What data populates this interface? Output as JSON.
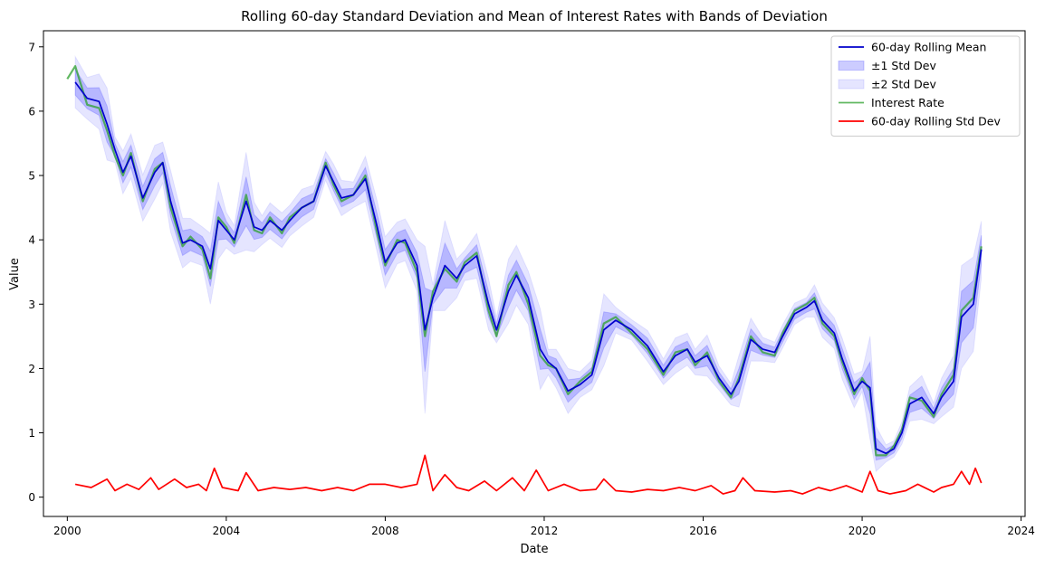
{
  "chart_data": {
    "type": "line",
    "title": "Rolling 60-day Standard Deviation and Mean of Interest Rates with Bands of Deviation",
    "xlabel": "Date",
    "ylabel": "Value",
    "xlim": [
      1999.4,
      2024.1
    ],
    "ylim": [
      -0.3,
      7.25
    ],
    "xticks": [
      2000,
      2004,
      2008,
      2012,
      2016,
      2020,
      2024
    ],
    "yticks": [
      0,
      1,
      2,
      3,
      4,
      5,
      6,
      7
    ],
    "legend_position": "top-right",
    "series": [
      {
        "name": "60-day Rolling Mean",
        "kind": "line",
        "color": "#0000cc"
      },
      {
        "name": "±1 Std Dev",
        "kind": "band",
        "color": "#0000ff",
        "opacity": 0.2
      },
      {
        "name": "±2 Std Dev",
        "kind": "band",
        "color": "#0000ff",
        "opacity": 0.1
      },
      {
        "name": "Interest Rate",
        "kind": "line",
        "color": "#2ca02c"
      },
      {
        "name": "60-day Rolling Std Dev",
        "kind": "line",
        "color": "#ff0000"
      }
    ],
    "mean": {
      "x": [
        2000.2,
        2000.5,
        2000.8,
        2001.0,
        2001.2,
        2001.4,
        2001.6,
        2001.9,
        2002.2,
        2002.4,
        2002.6,
        2002.9,
        2003.1,
        2003.4,
        2003.6,
        2003.8,
        2004.0,
        2004.2,
        2004.5,
        2004.7,
        2004.9,
        2005.1,
        2005.4,
        2005.6,
        2005.9,
        2006.2,
        2006.5,
        2006.7,
        2006.9,
        2007.2,
        2007.5,
        2007.8,
        2008.0,
        2008.3,
        2008.5,
        2008.8,
        2009.0,
        2009.2,
        2009.5,
        2009.8,
        2010.0,
        2010.3,
        2010.6,
        2010.8,
        2011.1,
        2011.3,
        2011.6,
        2011.9,
        2012.1,
        2012.3,
        2012.6,
        2012.9,
        2013.2,
        2013.5,
        2013.8,
        2014.2,
        2014.6,
        2015.0,
        2015.3,
        2015.6,
        2015.8,
        2016.1,
        2016.4,
        2016.7,
        2016.9,
        2017.2,
        2017.5,
        2017.8,
        2018.0,
        2018.3,
        2018.6,
        2018.8,
        2019.0,
        2019.3,
        2019.5,
        2019.8,
        2020.0,
        2020.2,
        2020.35,
        2020.6,
        2020.8,
        2021.0,
        2021.2,
        2021.5,
        2021.8,
        2022.0,
        2022.3,
        2022.5,
        2022.8,
        2023.0
      ],
      "y": [
        6.45,
        6.2,
        6.15,
        5.8,
        5.4,
        5.05,
        5.3,
        4.65,
        5.05,
        5.2,
        4.6,
        3.95,
        4.0,
        3.9,
        3.55,
        4.3,
        4.15,
        4.0,
        4.6,
        4.2,
        4.15,
        4.3,
        4.15,
        4.3,
        4.5,
        4.6,
        5.15,
        4.9,
        4.65,
        4.7,
        4.95,
        4.2,
        3.65,
        3.95,
        4.0,
        3.6,
        2.6,
        3.1,
        3.6,
        3.4,
        3.6,
        3.75,
        3.0,
        2.6,
        3.2,
        3.45,
        3.1,
        2.3,
        2.1,
        2.0,
        1.65,
        1.75,
        1.9,
        2.6,
        2.75,
        2.6,
        2.35,
        1.95,
        2.2,
        2.3,
        2.1,
        2.2,
        1.85,
        1.6,
        1.8,
        2.45,
        2.3,
        2.25,
        2.5,
        2.85,
        2.95,
        3.05,
        2.75,
        2.55,
        2.15,
        1.65,
        1.8,
        1.7,
        0.75,
        0.68,
        0.75,
        1.0,
        1.45,
        1.55,
        1.3,
        1.55,
        1.8,
        2.8,
        3.0,
        3.85
      ]
    },
    "std": {
      "x": [
        2000.2,
        2000.6,
        2001.0,
        2001.2,
        2001.5,
        2001.8,
        2002.1,
        2002.3,
        2002.7,
        2003.0,
        2003.3,
        2003.5,
        2003.7,
        2003.9,
        2004.3,
        2004.5,
        2004.8,
        2005.2,
        2005.6,
        2006.0,
        2006.4,
        2006.8,
        2007.2,
        2007.6,
        2008.0,
        2008.4,
        2008.8,
        2009.0,
        2009.2,
        2009.5,
        2009.8,
        2010.1,
        2010.5,
        2010.8,
        2011.2,
        2011.5,
        2011.8,
        2012.1,
        2012.5,
        2012.9,
        2013.3,
        2013.5,
        2013.8,
        2014.2,
        2014.6,
        2015.0,
        2015.4,
        2015.8,
        2016.2,
        2016.5,
        2016.8,
        2017.0,
        2017.3,
        2017.8,
        2018.2,
        2018.5,
        2018.9,
        2019.2,
        2019.6,
        2020.0,
        2020.2,
        2020.4,
        2020.7,
        2021.1,
        2021.4,
        2021.8,
        2022.0,
        2022.3,
        2022.5,
        2022.7,
        2022.85,
        2023.0
      ],
      "y": [
        0.2,
        0.15,
        0.28,
        0.1,
        0.2,
        0.12,
        0.3,
        0.12,
        0.28,
        0.15,
        0.2,
        0.1,
        0.45,
        0.15,
        0.1,
        0.38,
        0.1,
        0.15,
        0.12,
        0.15,
        0.1,
        0.15,
        0.1,
        0.2,
        0.2,
        0.15,
        0.2,
        0.65,
        0.1,
        0.35,
        0.15,
        0.1,
        0.25,
        0.1,
        0.3,
        0.1,
        0.42,
        0.1,
        0.2,
        0.1,
        0.12,
        0.28,
        0.1,
        0.08,
        0.12,
        0.1,
        0.15,
        0.1,
        0.18,
        0.05,
        0.1,
        0.3,
        0.1,
        0.08,
        0.1,
        0.05,
        0.15,
        0.1,
        0.18,
        0.08,
        0.4,
        0.1,
        0.05,
        0.1,
        0.2,
        0.08,
        0.15,
        0.2,
        0.4,
        0.2,
        0.45,
        0.22
      ]
    },
    "interest_rate": {
      "x": [
        2000.0,
        2000.2,
        2000.5,
        2000.8,
        2001.0,
        2001.2,
        2001.4,
        2001.6,
        2001.9,
        2002.2,
        2002.4,
        2002.6,
        2002.9,
        2003.1,
        2003.4,
        2003.6,
        2003.8,
        2004.0,
        2004.2,
        2004.5,
        2004.7,
        2004.9,
        2005.1,
        2005.4,
        2005.6,
        2005.9,
        2006.2,
        2006.5,
        2006.7,
        2006.9,
        2007.2,
        2007.5,
        2007.8,
        2008.0,
        2008.3,
        2008.5,
        2008.8,
        2009.0,
        2009.2,
        2009.5,
        2009.8,
        2010.0,
        2010.3,
        2010.6,
        2010.8,
        2011.1,
        2011.3,
        2011.6,
        2011.9,
        2012.1,
        2012.3,
        2012.6,
        2012.9,
        2013.2,
        2013.5,
        2013.8,
        2014.2,
        2014.6,
        2015.0,
        2015.3,
        2015.6,
        2015.8,
        2016.1,
        2016.4,
        2016.7,
        2016.9,
        2017.2,
        2017.5,
        2017.8,
        2018.0,
        2018.3,
        2018.6,
        2018.8,
        2019.0,
        2019.3,
        2019.5,
        2019.8,
        2020.0,
        2020.2,
        2020.35,
        2020.6,
        2020.8,
        2021.0,
        2021.2,
        2021.5,
        2021.8,
        2022.0,
        2022.3,
        2022.5,
        2022.8,
        2023.0
      ],
      "y": [
        6.5,
        6.7,
        6.1,
        6.05,
        5.7,
        5.3,
        5.0,
        5.35,
        4.6,
        5.1,
        5.2,
        4.5,
        3.9,
        4.05,
        3.85,
        3.4,
        4.35,
        4.2,
        3.95,
        4.7,
        4.15,
        4.1,
        4.35,
        4.1,
        4.35,
        4.5,
        4.6,
        5.2,
        4.85,
        4.6,
        4.7,
        5.0,
        4.1,
        3.6,
        4.0,
        3.95,
        3.5,
        2.5,
        3.2,
        3.55,
        3.35,
        3.65,
        3.8,
        2.9,
        2.5,
        3.3,
        3.5,
        3.0,
        2.2,
        2.05,
        2.0,
        1.6,
        1.8,
        1.95,
        2.7,
        2.8,
        2.55,
        2.3,
        1.9,
        2.25,
        2.3,
        2.05,
        2.25,
        1.8,
        1.55,
        1.85,
        2.5,
        2.25,
        2.2,
        2.55,
        2.9,
        3.0,
        3.1,
        2.7,
        2.5,
        2.1,
        1.6,
        1.85,
        1.65,
        0.65,
        0.65,
        0.8,
        1.05,
        1.55,
        1.5,
        1.25,
        1.6,
        1.9,
        2.9,
        3.1,
        3.9
      ]
    }
  }
}
